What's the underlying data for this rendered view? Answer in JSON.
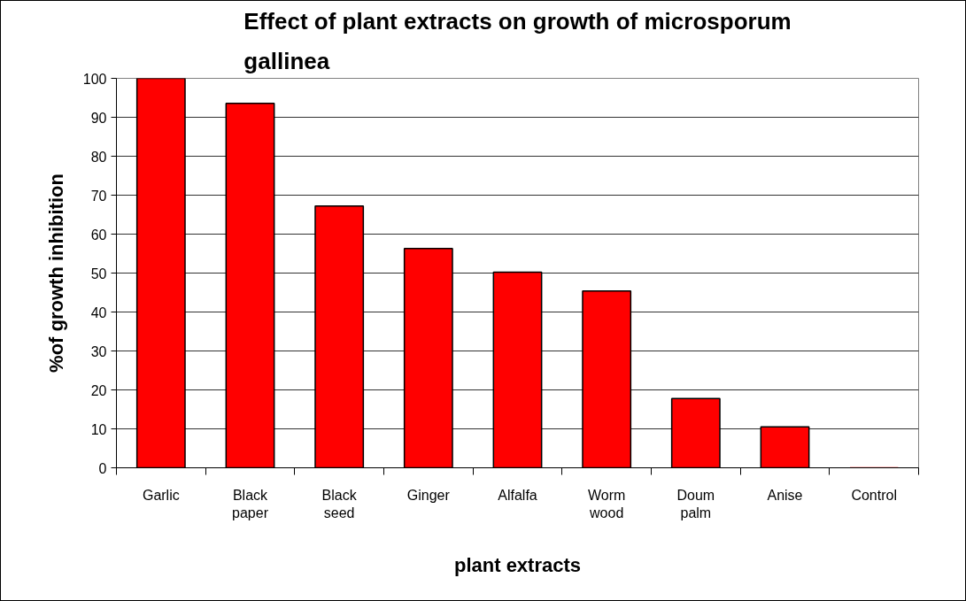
{
  "chart_data": {
    "type": "bar",
    "title": "Effect of plant extracts on growth of microsporum gallinea",
    "xlabel": "plant extracts",
    "ylabel": "%of growth inhibition",
    "categories": [
      "Garlic",
      "Black paper",
      "Black seed",
      "Ginger",
      "Alfalfa",
      "Worm wood",
      "Doum palm",
      "Anise",
      "Control"
    ],
    "values": [
      100,
      93.6,
      67.2,
      56.3,
      50.2,
      45.4,
      17.8,
      10.5,
      0
    ],
    "color": "#ff0000",
    "ylim": [
      0,
      100
    ],
    "yticks": [
      0,
      10,
      20,
      30,
      40,
      50,
      60,
      70,
      80,
      90,
      100
    ],
    "grid": "y"
  }
}
